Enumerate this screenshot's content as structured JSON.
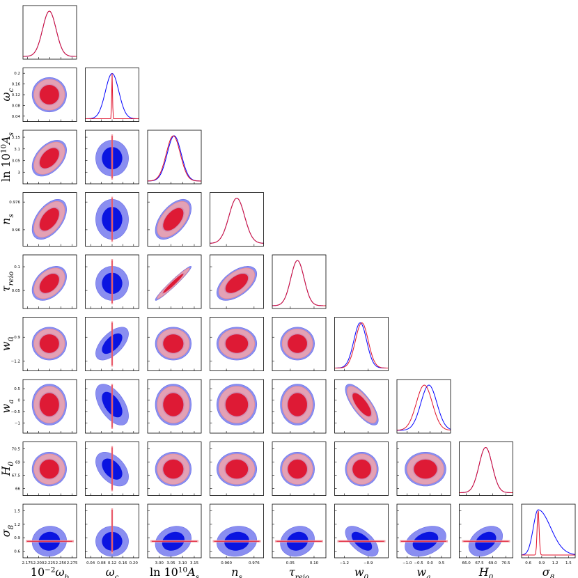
{
  "chart_data": {
    "type": "triangle-corner-plot",
    "series": [
      {
        "name": "",
        "color": "#0000ff",
        "fill_outer": "#8a8ef0",
        "fill_inner": "#0a14e0"
      },
      {
        "name": "",
        "color": "#e0102a",
        "fill_outer": "#f2a4aa",
        "fill_inner": "#e0102a"
      }
    ],
    "params": [
      {
        "label": "10^{-2}ω_b",
        "label_main": "10",
        "label_sup": "−2",
        "label_tail": "ω",
        "label_sub": "b",
        "range": [
          2.165,
          2.285
        ],
        "ticks": [
          2.175,
          2.2,
          2.225,
          2.25,
          2.275
        ],
        "tick_labels": [
          "2.175",
          "2.200",
          "2.225",
          "2.250",
          "2.275"
        ],
        "mean": 2.224,
        "sigma": 0.015
      },
      {
        "label": "ω_c",
        "label_main": "",
        "label_sup": "",
        "label_tail": "ω",
        "label_sub": "c",
        "range": [
          0.02,
          0.22
        ],
        "ticks": [
          0.04,
          0.08,
          0.12,
          0.16,
          0.2
        ],
        "tick_labels": [
          "0.04",
          "0.08",
          "0.12",
          "0.16",
          "0.20"
        ],
        "y_tick_labels": [
          "0.04",
          "0.08",
          "0.12",
          "0.16",
          "0.2"
        ],
        "mean": 0.12,
        "sigma": 0.025
      },
      {
        "label": "ln10^{10}A_s",
        "label_main": "ln 10",
        "label_sup": "10",
        "label_tail": "A",
        "label_sub": "s",
        "range": [
          2.95,
          3.18
        ],
        "ticks": [
          3.0,
          3.05,
          3.1,
          3.15
        ],
        "tick_labels": [
          "3.00",
          "3.05",
          "3.10",
          "3.15"
        ],
        "y_ticks": [
          3.0,
          3.05,
          3.1,
          3.15
        ],
        "y_tick_labels": [
          "3",
          "3.05",
          "3.1",
          "3.15"
        ],
        "mean": 3.06,
        "sigma": 0.03
      },
      {
        "label": "n_s",
        "label_main": "",
        "label_sup": "",
        "label_tail": "n",
        "label_sub": "s",
        "range": [
          0.9505,
          0.9815
        ],
        "ticks": [
          0.96,
          0.976
        ],
        "tick_labels": [
          "0.960",
          "0.976"
        ],
        "y_tick_labels": [
          "0.96",
          "0.976"
        ],
        "mean": 0.966,
        "sigma": 0.0045
      },
      {
        "label": "τ_reio",
        "label_main": "",
        "label_sup": "",
        "label_tail": "τ",
        "label_sub": "reio",
        "range": [
          0.012,
          0.125
        ],
        "ticks": [
          0.05,
          0.1
        ],
        "tick_labels": [
          "0.05",
          "0.10"
        ],
        "y_tick_labels": [
          "0.05",
          "0.1"
        ],
        "mean": 0.065,
        "sigma": 0.014
      },
      {
        "label": "w_0",
        "label_main": "",
        "label_sup": "",
        "label_tail": "w",
        "label_sub": "0",
        "range": [
          -1.32,
          -0.65
        ],
        "ticks": [
          -1.2,
          -0.9
        ],
        "tick_labels": [
          "−1.2",
          "−0.9"
        ],
        "y_tick_labels": [
          "−1.2",
          "−0.9"
        ],
        "mean": -0.98,
        "sigma": 0.08
      },
      {
        "label": "w_a",
        "label_main": "",
        "label_sup": "",
        "label_tail": "w",
        "label_sub": "a",
        "range": [
          -1.45,
          0.9
        ],
        "ticks": [
          -1.0,
          -0.5,
          0.0,
          0.5
        ],
        "tick_labels": [
          "−1.0",
          "−0.5",
          "0.0",
          "0.5"
        ],
        "y_ticks": [
          -1.0,
          -0.5,
          0.0,
          0.5
        ],
        "y_tick_labels": [
          "−1",
          "−0.5",
          "0",
          "0.5"
        ],
        "mean": -0.2,
        "sigma": 0.35
      },
      {
        "label": "H_0",
        "label_main": "",
        "label_sup": "",
        "label_tail": "H",
        "label_sub": "0",
        "range": [
          65.2,
          71.3
        ],
        "ticks": [
          66.0,
          67.5,
          69.0,
          70.5
        ],
        "tick_labels": [
          "66.0",
          "67.5",
          "69.0",
          "70.5"
        ],
        "y_ticks": [
          66.0,
          67.5,
          69.0,
          70.5
        ],
        "y_tick_labels": [
          "66",
          "67.5",
          "69",
          "70.5"
        ],
        "mean": 68.2,
        "sigma": 0.75
      },
      {
        "label": "σ_8",
        "label_main": "",
        "label_sup": "",
        "label_tail": "σ",
        "label_sub": "8",
        "range": [
          0.45,
          1.65
        ],
        "ticks": [
          0.6,
          0.9,
          1.2,
          1.5
        ],
        "tick_labels": [
          "0.6",
          "0.9",
          "1.2",
          "1.5"
        ],
        "y_ticks": [
          0.6,
          0.9,
          1.2,
          1.5
        ],
        "y_tick_labels": [
          "0.6",
          "0.9",
          "1.2",
          "1.5"
        ],
        "mean": 0.82,
        "sigma": 0.12
      }
    ]
  }
}
